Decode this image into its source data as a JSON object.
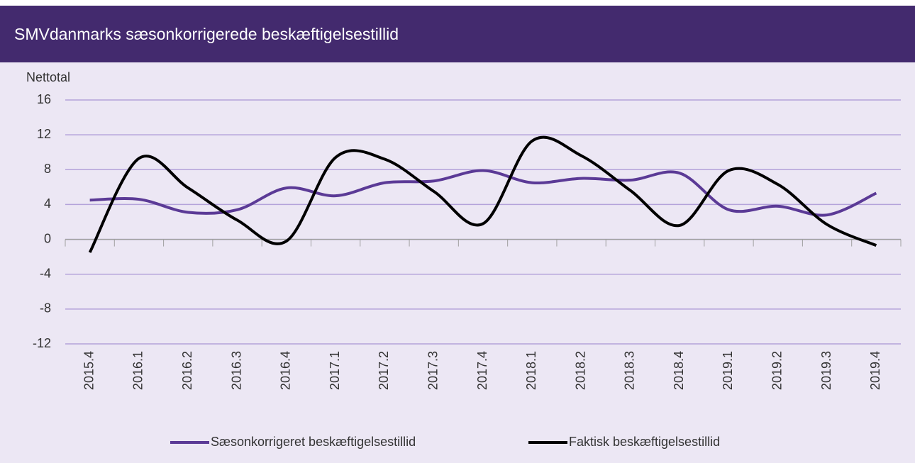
{
  "chart_data": {
    "type": "line",
    "title": "SMVdanmarks sæsonkorrigerede beskæftigelsestillid",
    "y_label": "Nettotal",
    "categories": [
      "2015.4",
      "2016.1",
      "2016.2",
      "2016.3",
      "2016.4",
      "2017.1",
      "2017.2",
      "2017.3",
      "2017.4",
      "2018.1",
      "2018.2",
      "2018.3",
      "2018.4",
      "2019.1",
      "2019.2",
      "2019.3",
      "2019.4"
    ],
    "series": [
      {
        "name": "Sæsonkorrigeret beskæftigelsestillid",
        "color": "#5b3a96",
        "values": [
          4.5,
          4.6,
          3.1,
          3.4,
          5.9,
          5.0,
          6.5,
          6.7,
          7.9,
          6.5,
          7.0,
          6.8,
          7.6,
          3.4,
          3.8,
          2.8,
          5.3
        ]
      },
      {
        "name": "Faktisk beskæftigelsestillid",
        "color": "#000000",
        "values": [
          -1.5,
          9.3,
          5.9,
          2.2,
          -0.2,
          9.4,
          9.2,
          5.5,
          1.8,
          11.3,
          9.6,
          5.6,
          1.6,
          7.9,
          6.3,
          1.7,
          -0.7
        ]
      }
    ],
    "ylim": [
      -12,
      16
    ],
    "yticks": [
      -12,
      -8,
      -4,
      0,
      4,
      8,
      12,
      16
    ],
    "grid": true,
    "smooth": true,
    "legend": "bottom"
  }
}
